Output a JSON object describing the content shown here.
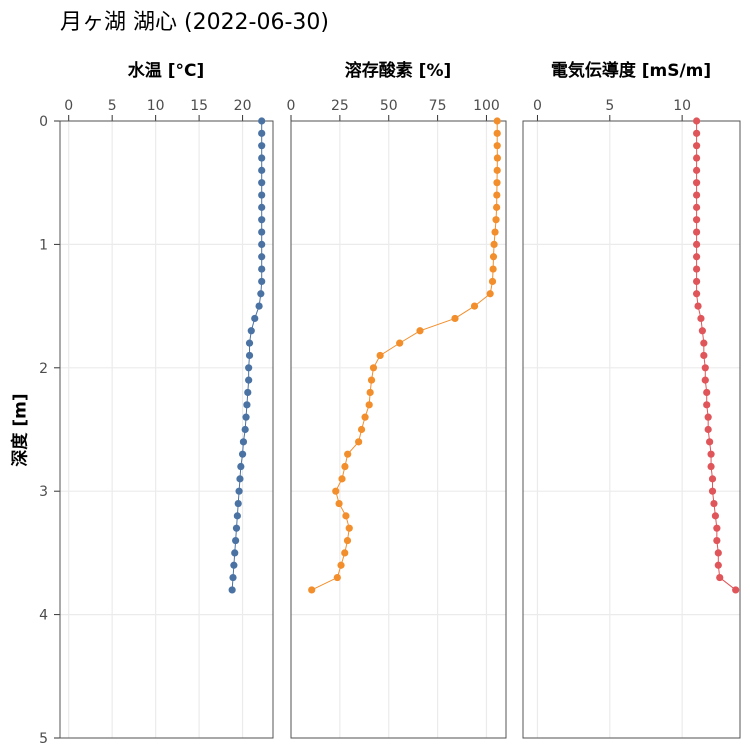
{
  "title": "月ヶ湖 湖心 (2022-06-30)",
  "colors": {
    "temperature": "#4a73a4",
    "do": "#f28e2b",
    "ec": "#e05559",
    "grid": "#ebebeb",
    "frame": "#333333"
  },
  "chart_data": {
    "type": "line",
    "depth_label": "深度 [m]",
    "depth_range": [
      0,
      5
    ],
    "depth_ticks": [
      0,
      1,
      2,
      3,
      4,
      5
    ],
    "depth": [
      0.0,
      0.1,
      0.2,
      0.3,
      0.4,
      0.5,
      0.6,
      0.7,
      0.8,
      0.9,
      1.0,
      1.1,
      1.2,
      1.3,
      1.4,
      1.5,
      1.6,
      1.7,
      1.8,
      1.9,
      2.0,
      2.1,
      2.2,
      2.3,
      2.4,
      2.5,
      2.6,
      2.7,
      2.8,
      2.9,
      3.0,
      3.1,
      3.2,
      3.3,
      3.4,
      3.5,
      3.6,
      3.7,
      3.8
    ],
    "panels": [
      {
        "key": "temperature",
        "title": "水温 [°C]",
        "xlim": [
          -1,
          23.5
        ],
        "ticks": [
          0,
          5,
          10,
          15,
          20
        ],
        "values": [
          22.2,
          22.2,
          22.2,
          22.2,
          22.2,
          22.2,
          22.2,
          22.2,
          22.2,
          22.2,
          22.2,
          22.2,
          22.2,
          22.2,
          22.1,
          21.9,
          21.4,
          21.0,
          20.8,
          20.8,
          20.7,
          20.7,
          20.6,
          20.5,
          20.4,
          20.3,
          20.1,
          20.0,
          19.8,
          19.7,
          19.6,
          19.5,
          19.4,
          19.3,
          19.2,
          19.1,
          19.0,
          18.9,
          18.8
        ]
      },
      {
        "key": "do",
        "title": "溶存酸素 [%]",
        "xlim": [
          0,
          110
        ],
        "ticks": [
          0,
          25,
          50,
          75,
          100
        ],
        "values": [
          105.5,
          105.5,
          105.5,
          105.6,
          105.5,
          105.4,
          105.3,
          105.2,
          104.9,
          104.4,
          103.9,
          103.6,
          103.4,
          103.1,
          101.9,
          93.9,
          83.9,
          66.0,
          55.6,
          45.6,
          42.2,
          41.2,
          40.5,
          40.0,
          37.9,
          36.1,
          34.6,
          29.0,
          27.6,
          26.1,
          22.9,
          24.6,
          28.1,
          29.8,
          28.9,
          27.5,
          25.6,
          23.7,
          10.6
        ]
      },
      {
        "key": "ec",
        "title": "電気伝導度 [mS/m]",
        "xlim": [
          -1,
          14
        ],
        "ticks": [
          0,
          5,
          10
        ],
        "values": [
          11.0,
          11.0,
          11.0,
          11.0,
          11.0,
          11.0,
          11.0,
          11.0,
          11.0,
          11.0,
          11.0,
          11.0,
          11.0,
          11.0,
          11.0,
          11.1,
          11.3,
          11.4,
          11.5,
          11.5,
          11.6,
          11.6,
          11.7,
          11.7,
          11.8,
          11.8,
          11.9,
          12.0,
          12.0,
          12.1,
          12.1,
          12.2,
          12.3,
          12.4,
          12.4,
          12.5,
          12.5,
          12.6,
          13.7
        ]
      }
    ]
  }
}
